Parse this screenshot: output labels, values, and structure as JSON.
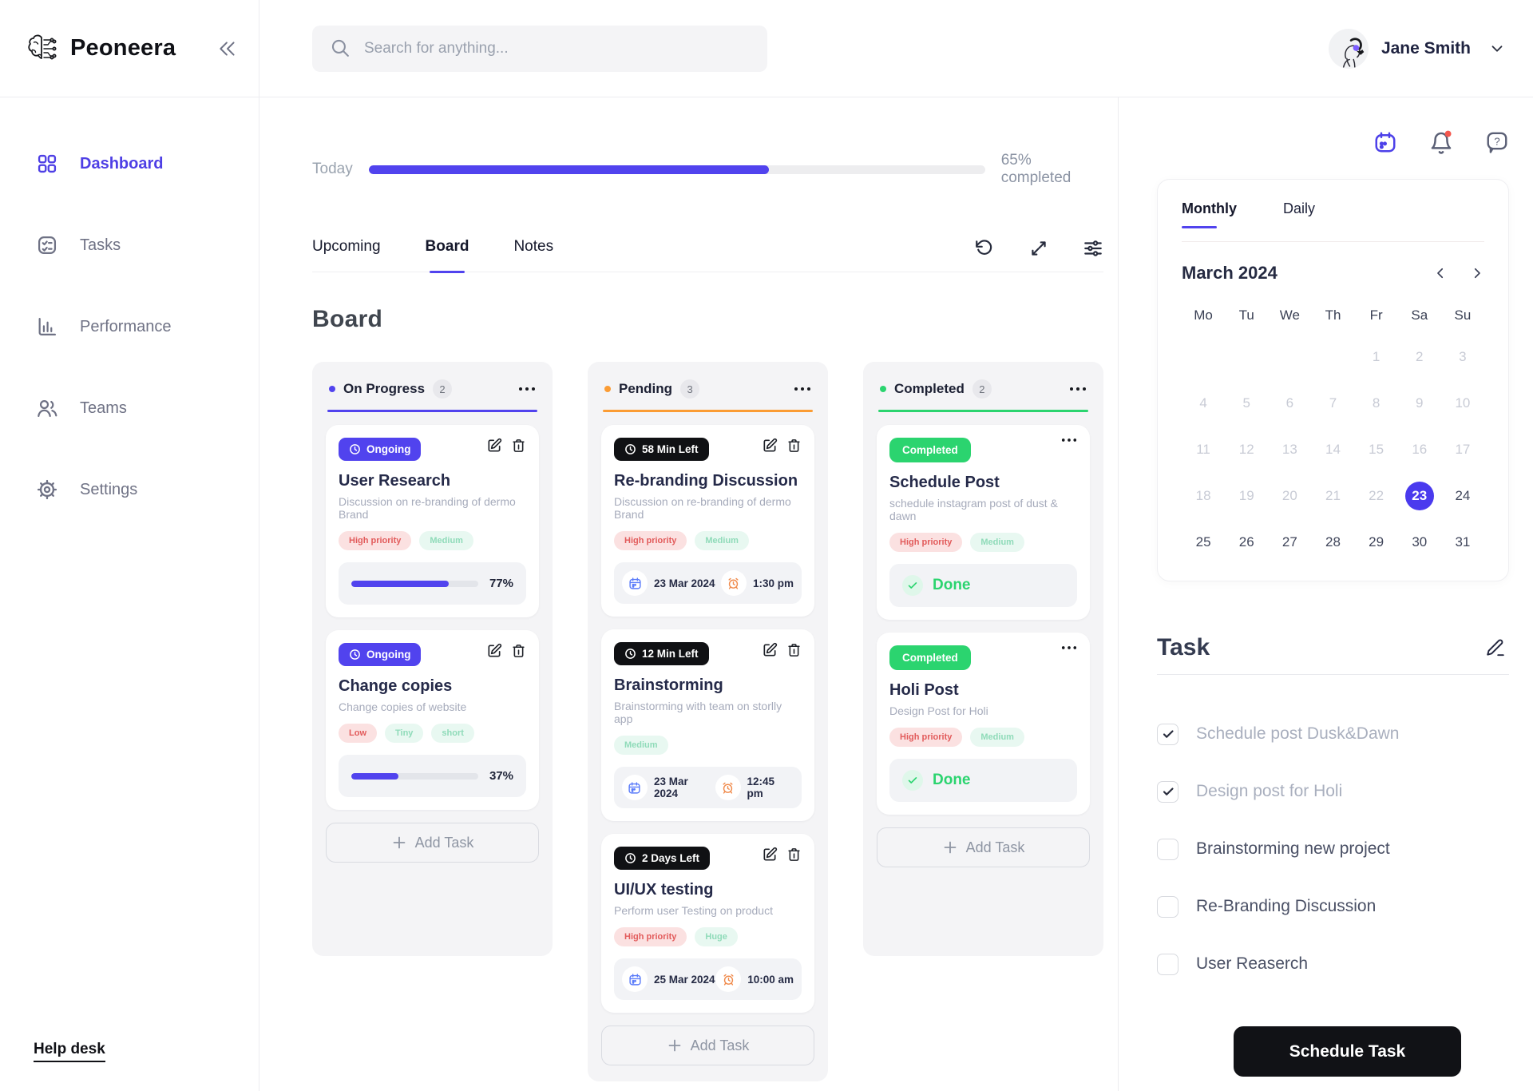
{
  "app": {
    "name": "Peoneera"
  },
  "header": {
    "search_placeholder": "Search for anything...",
    "user_name": "Jane Smith"
  },
  "sidebar": {
    "items": [
      {
        "label": "Dashboard",
        "active": true
      },
      {
        "label": "Tasks",
        "active": false
      },
      {
        "label": "Performance",
        "active": false
      },
      {
        "label": "Teams",
        "active": false
      },
      {
        "label": "Settings",
        "active": false
      }
    ],
    "help_label": "Help desk"
  },
  "progress": {
    "label": "Today",
    "percent": 65,
    "completed_label": "65% completed"
  },
  "view_tabs": [
    {
      "label": "Upcoming",
      "active": false
    },
    {
      "label": "Board",
      "active": true
    },
    {
      "label": "Notes",
      "active": false
    }
  ],
  "board": {
    "title": "Board",
    "add_task_label": "Add Task",
    "columns": [
      {
        "name": "On Progress",
        "count": "2",
        "color": "#5143EE",
        "cards": [
          {
            "badge_label": "Ongoing",
            "title": "User Research",
            "subtitle": "Discussion on re-branding of dermo Brand",
            "tags": [
              {
                "label": "High priority"
              },
              {
                "label": "Medium"
              }
            ],
            "progress_percent": 77,
            "percent_label": "77%"
          },
          {
            "badge_label": "Ongoing",
            "title": "Change copies",
            "subtitle": "Change copies of website",
            "tags": [
              {
                "label": "Low"
              },
              {
                "label": "Tiny"
              },
              {
                "label": "short"
              }
            ],
            "progress_percent": 37,
            "percent_label": "37%"
          }
        ]
      },
      {
        "name": "Pending",
        "count": "3",
        "color": "#FB9C34",
        "cards": [
          {
            "badge_label": "58 Min Left",
            "title": "Re-branding Discussion",
            "subtitle": "Discussion on re-branding of dermo Brand",
            "tags": [
              {
                "label": "High priority"
              },
              {
                "label": "Medium"
              }
            ],
            "date_label": "23 Mar 2024",
            "time_label": "1:30 pm"
          },
          {
            "badge_label": "12 Min Left",
            "title": "Brainstorming",
            "subtitle": "Brainstorming with team on storlly app",
            "tags": [
              {
                "label": "Medium"
              }
            ],
            "date_label": "23 Mar 2024",
            "time_label": "12:45 pm"
          },
          {
            "badge_label": "2 Days Left",
            "title": "UI/UX testing",
            "subtitle": "Perform user Testing on product",
            "tags": [
              {
                "label": "High priority"
              },
              {
                "label": "Huge"
              }
            ],
            "date_label": "25 Mar 2024",
            "time_label": "10:00 am"
          }
        ]
      },
      {
        "name": "Completed",
        "count": "2",
        "color": "#2BD46F",
        "cards": [
          {
            "badge_label": "Completed",
            "title": "Schedule Post",
            "subtitle": "schedule instagram post of dust & dawn",
            "tags": [
              {
                "label": "High priority"
              },
              {
                "label": "Medium"
              }
            ],
            "done_label": "Done"
          },
          {
            "badge_label": "Completed",
            "title": "Holi Post",
            "subtitle": "Design Post for Holi",
            "tags": [
              {
                "label": "High priority"
              },
              {
                "label": "Medium"
              }
            ],
            "done_label": "Done"
          }
        ]
      }
    ]
  },
  "panel": {
    "tabs": [
      {
        "label": "Monthly",
        "active": true
      },
      {
        "label": "Daily",
        "active": false
      }
    ],
    "calendar": {
      "month": "March 2024",
      "weekdays": [
        "Mo",
        "Tu",
        "We",
        "Th",
        "Fr",
        "Sa",
        "Su"
      ],
      "weeks": [
        [
          "",
          "",
          "",
          "",
          "1",
          "2",
          "3"
        ],
        [
          "4",
          "5",
          "6",
          "7",
          "8",
          "9",
          "10"
        ],
        [
          "11",
          "12",
          "13",
          "14",
          "15",
          "16",
          "17"
        ],
        [
          "18",
          "19",
          "20",
          "21",
          "22",
          "23",
          "24"
        ],
        [
          "25",
          "26",
          "27",
          "28",
          "29",
          "30",
          "31"
        ]
      ],
      "selected_day": "23",
      "muted_until": 22
    },
    "task": {
      "title": "Task",
      "items": [
        {
          "label": "Schedule post Dusk&Dawn",
          "checked": true
        },
        {
          "label": "Design post for Holi",
          "checked": true
        },
        {
          "label": "Brainstorming new project",
          "checked": false
        },
        {
          "label": "Re-Branding Discussion",
          "checked": false
        },
        {
          "label": "User Reaserch",
          "checked": false
        }
      ]
    },
    "schedule_button_label": "Schedule Task"
  }
}
